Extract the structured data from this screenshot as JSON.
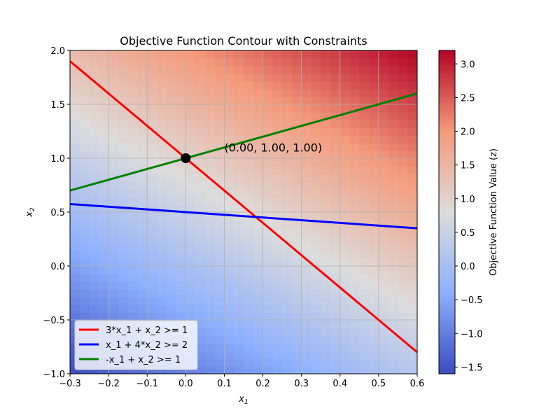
{
  "chart_data": {
    "type": "contour",
    "title": "Objective Function Contour with Constraints",
    "xlabel": "x",
    "xlabel_sub": "1",
    "ylabel": "x",
    "ylabel_sub": "2",
    "xlim": [
      -0.3,
      0.6
    ],
    "ylim": [
      -1.0,
      2.0
    ],
    "xticks": [
      -0.3,
      -0.2,
      -0.1,
      0.0,
      0.1,
      0.2,
      0.3,
      0.4,
      0.5,
      0.6
    ],
    "xtick_labels": [
      "−0.3",
      "−0.2",
      "−0.1",
      "0.0",
      "0.1",
      "0.2",
      "0.3",
      "0.4",
      "0.5",
      "0.6"
    ],
    "yticks": [
      -1.0,
      -0.5,
      0.0,
      0.5,
      1.0,
      1.5,
      2.0
    ],
    "ytick_labels": [
      "−1.0",
      "−0.5",
      "0.0",
      "0.5",
      "1.0",
      "1.5",
      "2.0"
    ],
    "grid": true,
    "colormap": "coolwarm",
    "colorbar": {
      "label": "Objective Function Value (z)",
      "range": [
        -1.6,
        3.2
      ],
      "ticks": [
        -1.5,
        -1.0,
        -0.5,
        0.0,
        0.5,
        1.0,
        1.5,
        2.0,
        2.5,
        3.0
      ],
      "tick_labels": [
        "−1.5",
        "−1.0",
        "−0.5",
        "0.0",
        "0.5",
        "1.0",
        "1.5",
        "2.0",
        "2.5",
        "3.0"
      ]
    },
    "series": [
      {
        "name": "3*x_1 + x_2 >= 1",
        "color": "#ff0000",
        "x": [
          -0.3,
          0.6
        ],
        "y": [
          1.9,
          -0.8
        ]
      },
      {
        "name": "x_1 + 4*x_2 >= 2",
        "color": "#0000ff",
        "x": [
          -0.3,
          0.6
        ],
        "y": [
          0.575,
          0.35
        ]
      },
      {
        "name": "-x_1 + x_2 >= 1",
        "color": "#008000",
        "x": [
          -0.3,
          0.6
        ],
        "y": [
          0.7,
          1.6
        ]
      }
    ],
    "optimal_point": {
      "x": 0.0,
      "y": 1.0
    },
    "annotation": {
      "text": "(0.00, 1.00, 1.00)",
      "x": 0.1,
      "y": 1.1
    },
    "legend_position": "lower-left"
  }
}
